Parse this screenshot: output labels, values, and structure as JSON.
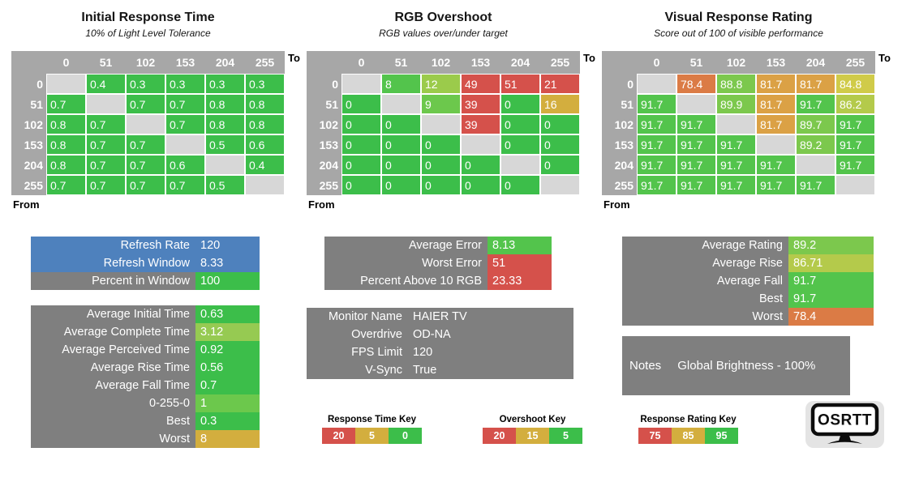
{
  "palette": {
    "green": "#3cbe4a",
    "green2": "#53c44c",
    "green3": "#6cc84c",
    "lime": "#7cc84d",
    "yellowgreen": "#9bcb4b",
    "olive": "#b4ca4b",
    "olive2": "#96ca52",
    "yellow": "#d0cb49",
    "gold": "#d3ae3e",
    "orange": "#dba145",
    "orangedeep": "#db7b45",
    "red": "#d5514b",
    "blue": "#4e81bd",
    "grayLabel": "#7f7f7f",
    "grayHeader": "#a7a7a7",
    "diag": "#d7d7d7"
  },
  "axis": {
    "to_label": "To",
    "from_label": "From",
    "levels": [
      "0",
      "51",
      "102",
      "153",
      "204",
      "255"
    ]
  },
  "tables": [
    {
      "id": "initial-response-time",
      "title": "Initial Response Time",
      "subtitle": "10% of Light Level Tolerance",
      "cells": [
        [
          null,
          {
            "v": "0.4",
            "c": "green"
          },
          {
            "v": "0.3",
            "c": "green"
          },
          {
            "v": "0.3",
            "c": "green"
          },
          {
            "v": "0.3",
            "c": "green"
          },
          {
            "v": "0.3",
            "c": "green"
          }
        ],
        [
          {
            "v": "0.7",
            "c": "green"
          },
          null,
          {
            "v": "0.7",
            "c": "green"
          },
          {
            "v": "0.7",
            "c": "green"
          },
          {
            "v": "0.8",
            "c": "green"
          },
          {
            "v": "0.8",
            "c": "green"
          }
        ],
        [
          {
            "v": "0.8",
            "c": "green"
          },
          {
            "v": "0.7",
            "c": "green"
          },
          null,
          {
            "v": "0.7",
            "c": "green"
          },
          {
            "v": "0.8",
            "c": "green"
          },
          {
            "v": "0.8",
            "c": "green"
          }
        ],
        [
          {
            "v": "0.8",
            "c": "green"
          },
          {
            "v": "0.7",
            "c": "green"
          },
          {
            "v": "0.7",
            "c": "green"
          },
          null,
          {
            "v": "0.5",
            "c": "green"
          },
          {
            "v": "0.6",
            "c": "green"
          }
        ],
        [
          {
            "v": "0.8",
            "c": "green"
          },
          {
            "v": "0.7",
            "c": "green"
          },
          {
            "v": "0.7",
            "c": "green"
          },
          {
            "v": "0.6",
            "c": "green"
          },
          null,
          {
            "v": "0.4",
            "c": "green"
          }
        ],
        [
          {
            "v": "0.7",
            "c": "green"
          },
          {
            "v": "0.7",
            "c": "green"
          },
          {
            "v": "0.7",
            "c": "green"
          },
          {
            "v": "0.7",
            "c": "green"
          },
          {
            "v": "0.5",
            "c": "green"
          },
          null
        ]
      ]
    },
    {
      "id": "rgb-overshoot",
      "title": "RGB Overshoot",
      "subtitle": "RGB values over/under target",
      "cells": [
        [
          null,
          {
            "v": "8",
            "c": "green2"
          },
          {
            "v": "12",
            "c": "yellowgreen"
          },
          {
            "v": "49",
            "c": "red"
          },
          {
            "v": "51",
            "c": "red"
          },
          {
            "v": "21",
            "c": "red"
          }
        ],
        [
          {
            "v": "0",
            "c": "green"
          },
          null,
          {
            "v": "9",
            "c": "green3"
          },
          {
            "v": "39",
            "c": "red"
          },
          {
            "v": "0",
            "c": "green"
          },
          {
            "v": "16",
            "c": "gold"
          }
        ],
        [
          {
            "v": "0",
            "c": "green"
          },
          {
            "v": "0",
            "c": "green"
          },
          null,
          {
            "v": "39",
            "c": "red"
          },
          {
            "v": "0",
            "c": "green"
          },
          {
            "v": "0",
            "c": "green"
          }
        ],
        [
          {
            "v": "0",
            "c": "green"
          },
          {
            "v": "0",
            "c": "green"
          },
          {
            "v": "0",
            "c": "green"
          },
          null,
          {
            "v": "0",
            "c": "green"
          },
          {
            "v": "0",
            "c": "green"
          }
        ],
        [
          {
            "v": "0",
            "c": "green"
          },
          {
            "v": "0",
            "c": "green"
          },
          {
            "v": "0",
            "c": "green"
          },
          {
            "v": "0",
            "c": "green"
          },
          null,
          {
            "v": "0",
            "c": "green"
          }
        ],
        [
          {
            "v": "0",
            "c": "green"
          },
          {
            "v": "0",
            "c": "green"
          },
          {
            "v": "0",
            "c": "green"
          },
          {
            "v": "0",
            "c": "green"
          },
          {
            "v": "0",
            "c": "green"
          },
          null
        ]
      ]
    },
    {
      "id": "visual-response-rating",
      "title": "Visual Response Rating",
      "subtitle": "Score out of 100 of visible performance",
      "cells": [
        [
          null,
          {
            "v": "78.4",
            "c": "orangedeep"
          },
          {
            "v": "88.8",
            "c": "lime"
          },
          {
            "v": "81.7",
            "c": "orange"
          },
          {
            "v": "81.7",
            "c": "orange"
          },
          {
            "v": "84.8",
            "c": "yellow"
          }
        ],
        [
          {
            "v": "91.7",
            "c": "green2"
          },
          null,
          {
            "v": "89.9",
            "c": "lime"
          },
          {
            "v": "81.7",
            "c": "orange"
          },
          {
            "v": "91.7",
            "c": "green2"
          },
          {
            "v": "86.2",
            "c": "olive"
          }
        ],
        [
          {
            "v": "91.7",
            "c": "green2"
          },
          {
            "v": "91.7",
            "c": "green2"
          },
          null,
          {
            "v": "81.7",
            "c": "orange"
          },
          {
            "v": "89.7",
            "c": "lime"
          },
          {
            "v": "91.7",
            "c": "green2"
          }
        ],
        [
          {
            "v": "91.7",
            "c": "green2"
          },
          {
            "v": "91.7",
            "c": "green2"
          },
          {
            "v": "91.7",
            "c": "green2"
          },
          null,
          {
            "v": "89.2",
            "c": "lime"
          },
          {
            "v": "91.7",
            "c": "green2"
          }
        ],
        [
          {
            "v": "91.7",
            "c": "green2"
          },
          {
            "v": "91.7",
            "c": "green2"
          },
          {
            "v": "91.7",
            "c": "green2"
          },
          {
            "v": "91.7",
            "c": "green2"
          },
          null,
          {
            "v": "91.7",
            "c": "green2"
          }
        ],
        [
          {
            "v": "91.7",
            "c": "green2"
          },
          {
            "v": "91.7",
            "c": "green2"
          },
          {
            "v": "91.7",
            "c": "green2"
          },
          {
            "v": "91.7",
            "c": "green2"
          },
          {
            "v": "91.7",
            "c": "green2"
          },
          null
        ]
      ]
    }
  ],
  "panels": [
    {
      "id": "refresh-info",
      "rows": [
        {
          "label": "Refresh Rate",
          "value": "120",
          "rowBg": "blue"
        },
        {
          "label": "Refresh Window",
          "value": "8.33",
          "rowBg": "blue"
        },
        {
          "label": "Percent in Window",
          "value": "100",
          "valueBg": "green"
        }
      ]
    },
    {
      "id": "time-averages",
      "rows": [
        {
          "label": "Average Initial Time",
          "value": "0.63",
          "valueBg": "green"
        },
        {
          "label": "Average Complete Time",
          "value": "3.12",
          "valueBg": "olive2"
        },
        {
          "label": "Average Perceived Time",
          "value": "0.92",
          "valueBg": "green"
        },
        {
          "label": "Average Rise Time",
          "value": "0.56",
          "valueBg": "green"
        },
        {
          "label": "Average Fall Time",
          "value": "0.7",
          "valueBg": "green"
        },
        {
          "label": "0-255-0",
          "value": "1",
          "valueBg": "green3"
        },
        {
          "label": "Best",
          "value": "0.3",
          "valueBg": "green"
        },
        {
          "label": "Worst",
          "value": "8",
          "valueBg": "gold"
        }
      ]
    },
    {
      "id": "overshoot-summary",
      "rows": [
        {
          "label": "Average Error",
          "value": "8.13",
          "valueBg": "green2"
        },
        {
          "label": "Worst Error",
          "value": "51",
          "valueBg": "red"
        },
        {
          "label": "Percent Above 10 RGB",
          "value": "23.33",
          "valueBg": "red"
        }
      ]
    },
    {
      "id": "monitor-info",
      "rows": [
        {
          "label": "Monitor Name",
          "value": "HAIER TV"
        },
        {
          "label": "Overdrive",
          "value": "OD-NA"
        },
        {
          "label": "FPS Limit",
          "value": "120"
        },
        {
          "label": "V-Sync",
          "value": "True"
        }
      ]
    },
    {
      "id": "rating-summary",
      "rows": [
        {
          "label": "Average Rating",
          "value": "89.2",
          "valueBg": "lime"
        },
        {
          "label": "Average Rise",
          "value": "86.71",
          "valueBg": "olive"
        },
        {
          "label": "Average Fall",
          "value": "91.7",
          "valueBg": "green2"
        },
        {
          "label": "Best",
          "value": "91.7",
          "valueBg": "green2"
        },
        {
          "label": "Worst",
          "value": "78.4",
          "valueBg": "orangedeep"
        }
      ]
    }
  ],
  "notes": {
    "label": "Notes",
    "value": "Global Brightness - 100%"
  },
  "keys": [
    {
      "id": "response-time-key",
      "title": "Response Time Key",
      "cells": [
        {
          "t": "20",
          "c": "red"
        },
        {
          "t": "5",
          "c": "gold"
        },
        {
          "t": "0",
          "c": "green"
        }
      ]
    },
    {
      "id": "overshoot-key",
      "title": "Overshoot Key",
      "cells": [
        {
          "t": "20",
          "c": "red"
        },
        {
          "t": "15",
          "c": "gold"
        },
        {
          "t": "5",
          "c": "green"
        }
      ]
    },
    {
      "id": "response-rating-key",
      "title": "Response Rating Key",
      "cells": [
        {
          "t": "75",
          "c": "red"
        },
        {
          "t": "85",
          "c": "gold"
        },
        {
          "t": "95",
          "c": "green"
        }
      ]
    }
  ],
  "logo": {
    "text": "OSRTT"
  },
  "chart_data": [
    {
      "type": "heatmap",
      "title": "Initial Response Time",
      "subtitle": "10% of Light Level Tolerance",
      "xlabel": "To",
      "ylabel": "From",
      "x_categories": [
        0,
        51,
        102,
        153,
        204,
        255
      ],
      "y_categories": [
        0,
        51,
        102,
        153,
        204,
        255
      ],
      "matrix": [
        [
          null,
          0.4,
          0.3,
          0.3,
          0.3,
          0.3
        ],
        [
          0.7,
          null,
          0.7,
          0.7,
          0.8,
          0.8
        ],
        [
          0.8,
          0.7,
          null,
          0.7,
          0.8,
          0.8
        ],
        [
          0.8,
          0.7,
          0.7,
          null,
          0.5,
          0.6
        ],
        [
          0.8,
          0.7,
          0.7,
          0.6,
          null,
          0.4
        ],
        [
          0.7,
          0.7,
          0.7,
          0.7,
          0.5,
          null
        ]
      ],
      "color_key": {
        "title": "Response Time Key",
        "red_at": 20,
        "yellow_at": 5,
        "green_at": 0
      },
      "summary": {
        "Refresh Rate": 120,
        "Refresh Window": 8.33,
        "Percent in Window": 100,
        "Average Initial Time": 0.63,
        "Average Complete Time": 3.12,
        "Average Perceived Time": 0.92,
        "Average Rise Time": 0.56,
        "Average Fall Time": 0.7,
        "0-255-0": 1,
        "Best": 0.3,
        "Worst": 8
      }
    },
    {
      "type": "heatmap",
      "title": "RGB Overshoot",
      "subtitle": "RGB values over/under target",
      "xlabel": "To",
      "ylabel": "From",
      "x_categories": [
        0,
        51,
        102,
        153,
        204,
        255
      ],
      "y_categories": [
        0,
        51,
        102,
        153,
        204,
        255
      ],
      "matrix": [
        [
          null,
          8,
          12,
          49,
          51,
          21
        ],
        [
          0,
          null,
          9,
          39,
          0,
          16
        ],
        [
          0,
          0,
          null,
          39,
          0,
          0
        ],
        [
          0,
          0,
          0,
          null,
          0,
          0
        ],
        [
          0,
          0,
          0,
          0,
          null,
          0
        ],
        [
          0,
          0,
          0,
          0,
          0,
          null
        ]
      ],
      "color_key": {
        "title": "Overshoot Key",
        "red_at": 20,
        "yellow_at": 15,
        "green_at": 5
      },
      "summary": {
        "Average Error": 8.13,
        "Worst Error": 51,
        "Percent Above 10 RGB": 23.33,
        "Monitor Name": "HAIER TV",
        "Overdrive": "OD-NA",
        "FPS Limit": 120,
        "V-Sync": "True"
      }
    },
    {
      "type": "heatmap",
      "title": "Visual Response Rating",
      "subtitle": "Score out of 100 of visible performance",
      "xlabel": "To",
      "ylabel": "From",
      "x_categories": [
        0,
        51,
        102,
        153,
        204,
        255
      ],
      "y_categories": [
        0,
        51,
        102,
        153,
        204,
        255
      ],
      "matrix": [
        [
          null,
          78.4,
          88.8,
          81.7,
          81.7,
          84.8
        ],
        [
          91.7,
          null,
          89.9,
          81.7,
          91.7,
          86.2
        ],
        [
          91.7,
          91.7,
          null,
          81.7,
          89.7,
          91.7
        ],
        [
          91.7,
          91.7,
          91.7,
          null,
          89.2,
          91.7
        ],
        [
          91.7,
          91.7,
          91.7,
          91.7,
          null,
          91.7
        ],
        [
          91.7,
          91.7,
          91.7,
          91.7,
          91.7,
          null
        ]
      ],
      "color_key": {
        "title": "Response Rating Key",
        "red_at": 75,
        "yellow_at": 85,
        "green_at": 95
      },
      "summary": {
        "Average Rating": 89.2,
        "Average Rise": 86.71,
        "Average Fall": 91.7,
        "Best": 91.7,
        "Worst": 78.4,
        "Notes": "Global Brightness - 100%"
      }
    }
  ]
}
